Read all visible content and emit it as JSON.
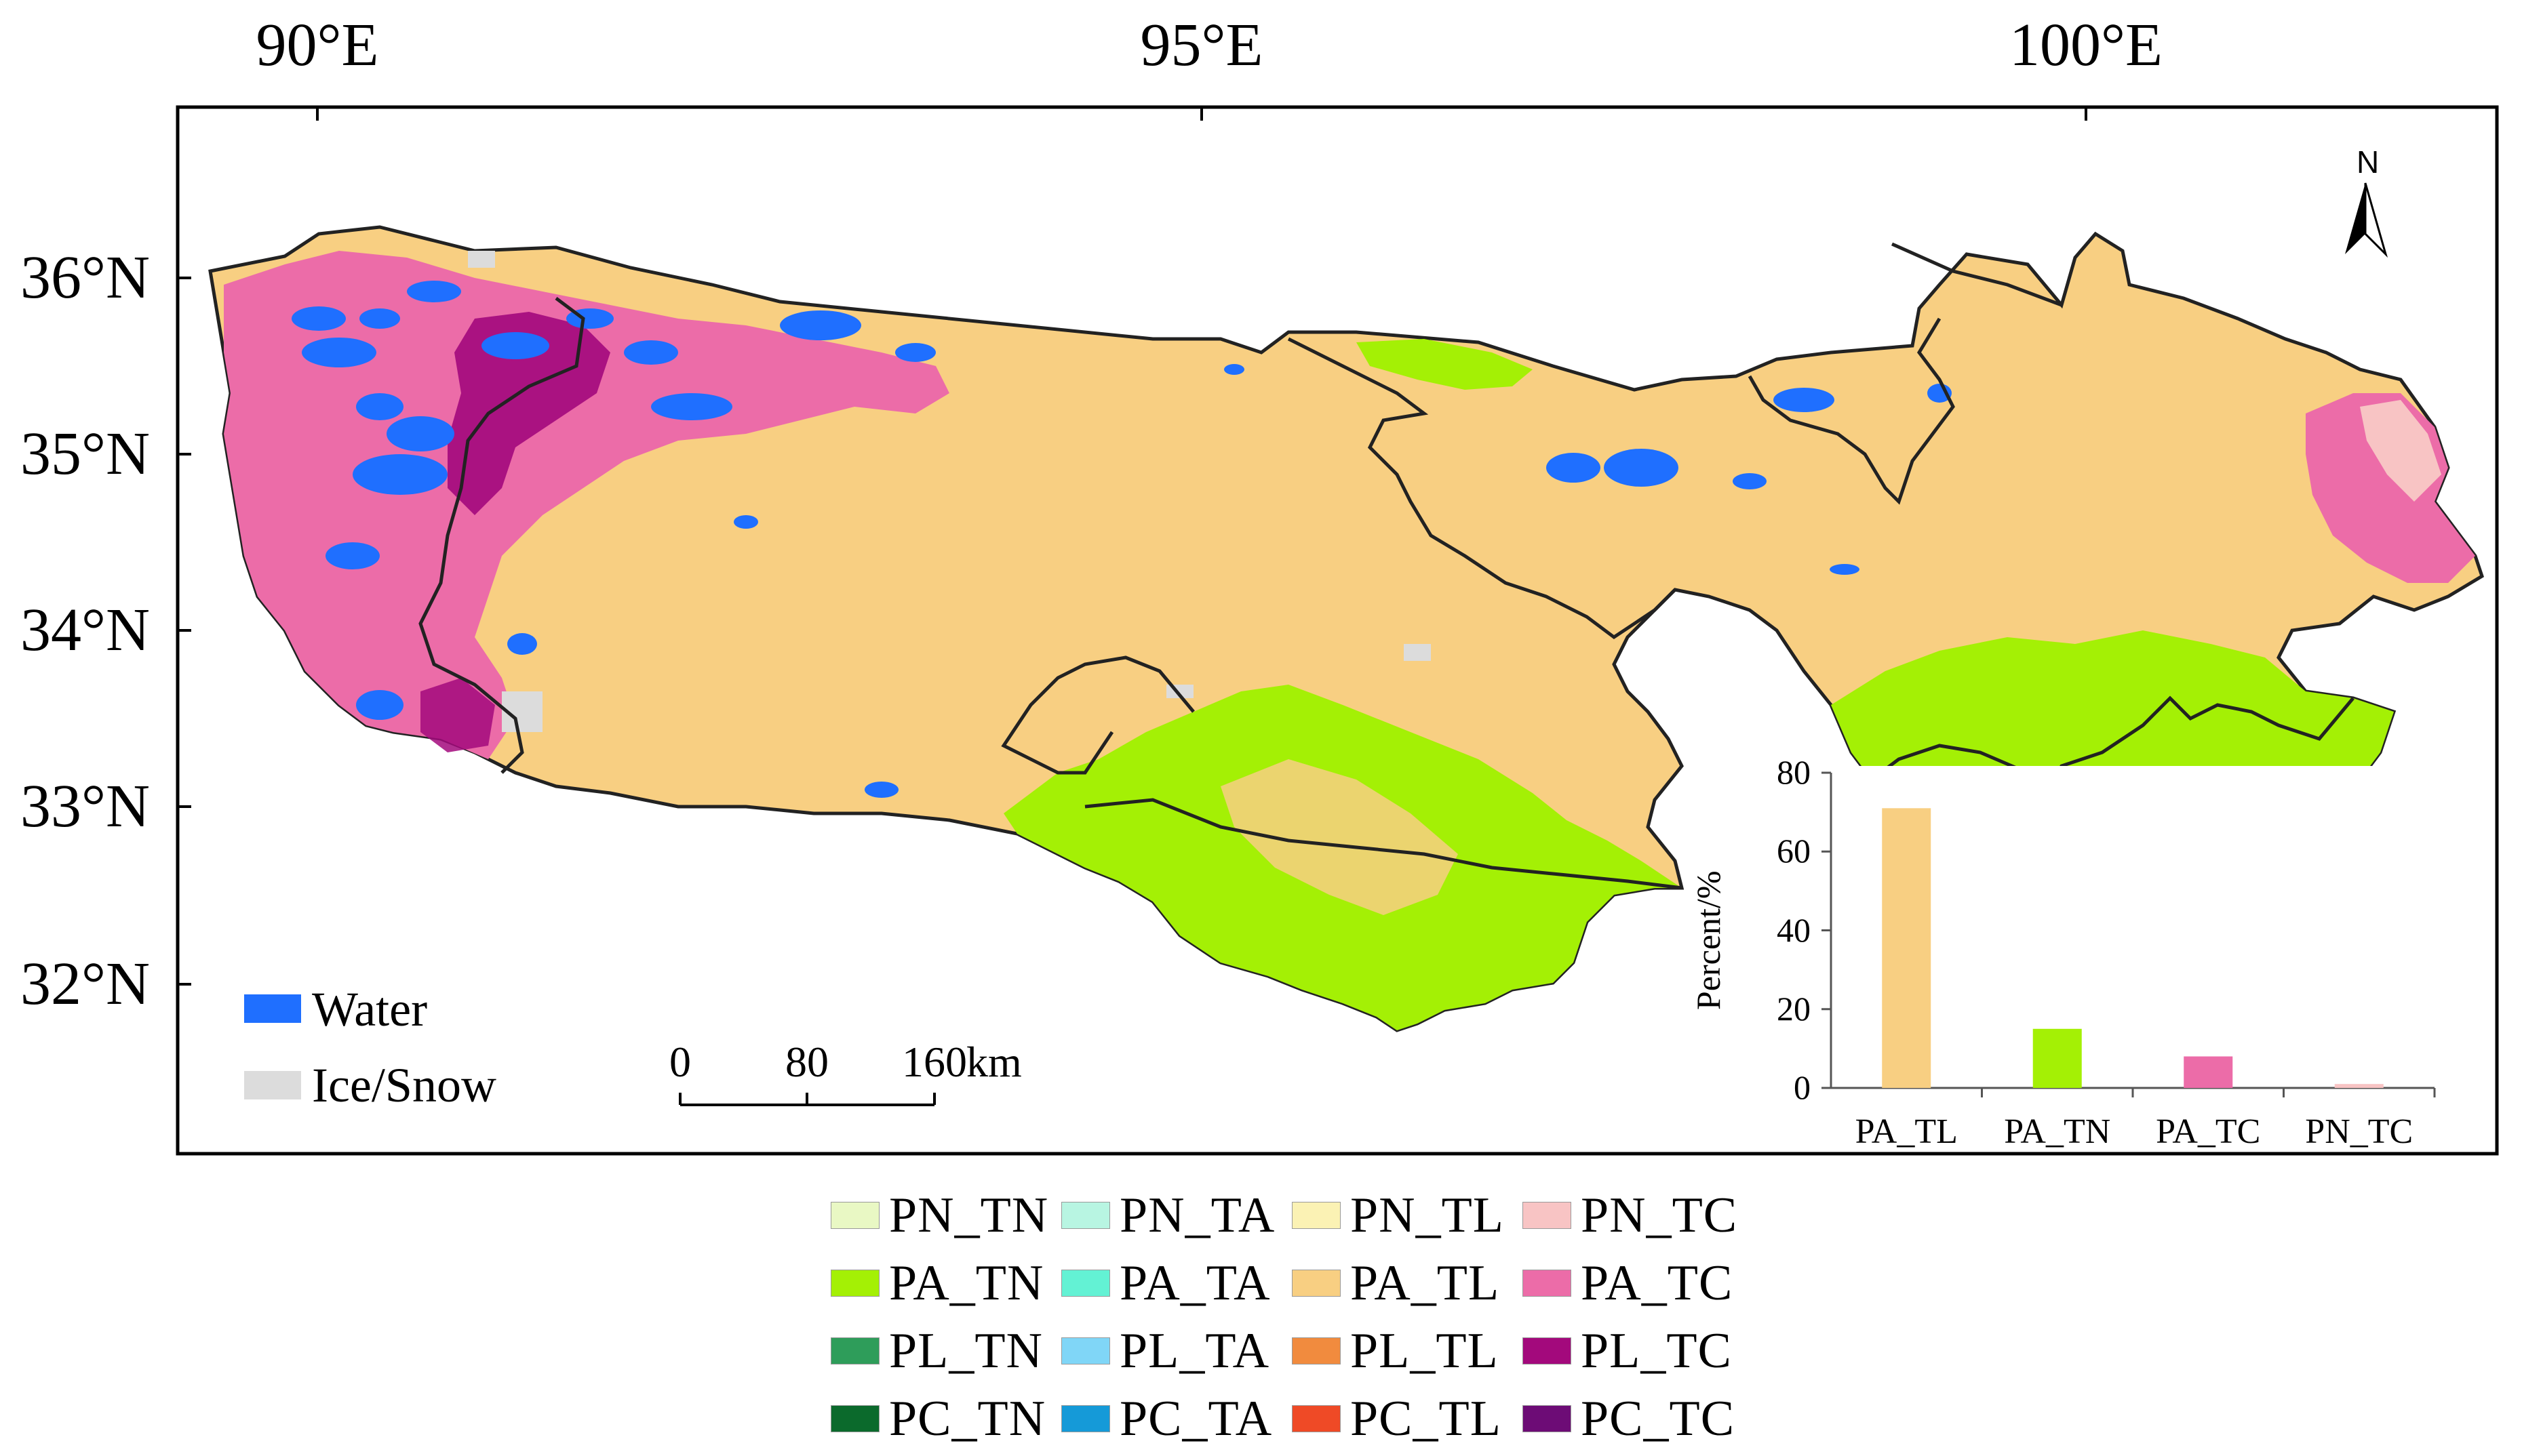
{
  "map": {
    "longitude_labels": [
      "90°E",
      "95°E",
      "100°E"
    ],
    "latitude_labels": [
      "36°N",
      "35°N",
      "34°N",
      "33°N",
      "32°N"
    ],
    "north_arrow": "N",
    "scale_bar": {
      "ticks": [
        "0",
        "80",
        "160"
      ],
      "unit": "km"
    },
    "inset_legend": [
      {
        "label": "Water",
        "color": "#1f6fff"
      },
      {
        "label": "Ice/Snow",
        "color": "#dcdcdc"
      }
    ],
    "colors": {
      "background": "#f8cf82",
      "green": "#a4f005",
      "pink": "#ec6ca8",
      "magenta": "#a3097c",
      "water": "#1f6fff",
      "boundary": "#222222"
    }
  },
  "chart_data": {
    "type": "bar",
    "categories": [
      "PA_TL",
      "PA_TN",
      "PA_TC",
      "PN_TC"
    ],
    "values": [
      71,
      15,
      8,
      1
    ],
    "colors": [
      "#f8cf82",
      "#a4f005",
      "#ec6ca8",
      "#f8c4c4"
    ],
    "title": "",
    "xlabel": "",
    "ylabel": "Percent/%",
    "ylim": [
      0,
      80
    ],
    "yticks": [
      0,
      20,
      40,
      60,
      80
    ]
  },
  "legend": {
    "items": [
      {
        "label": "PN_TN",
        "color": "#e9f8c4"
      },
      {
        "label": "PN_TA",
        "color": "#b8f5e2"
      },
      {
        "label": "PN_TL",
        "color": "#fbf2b4"
      },
      {
        "label": "PN_TC",
        "color": "#f8c4c4"
      },
      {
        "label": "PA_TN",
        "color": "#a4f005"
      },
      {
        "label": "PA_TA",
        "color": "#63f2d4"
      },
      {
        "label": "PA_TL",
        "color": "#f8cf82"
      },
      {
        "label": "PA_TC",
        "color": "#ec6ca8"
      },
      {
        "label": "PL_TN",
        "color": "#2e9d5a"
      },
      {
        "label": "PL_TA",
        "color": "#80d6f7"
      },
      {
        "label": "PL_TL",
        "color": "#f18b3e"
      },
      {
        "label": "PL_TC",
        "color": "#a3097c"
      },
      {
        "label": "PC_TN",
        "color": "#0b6a2c"
      },
      {
        "label": "PC_TA",
        "color": "#159ad8"
      },
      {
        "label": "PC_TL",
        "color": "#ef4a26"
      },
      {
        "label": "PC_TC",
        "color": "#6d0c76"
      }
    ]
  }
}
